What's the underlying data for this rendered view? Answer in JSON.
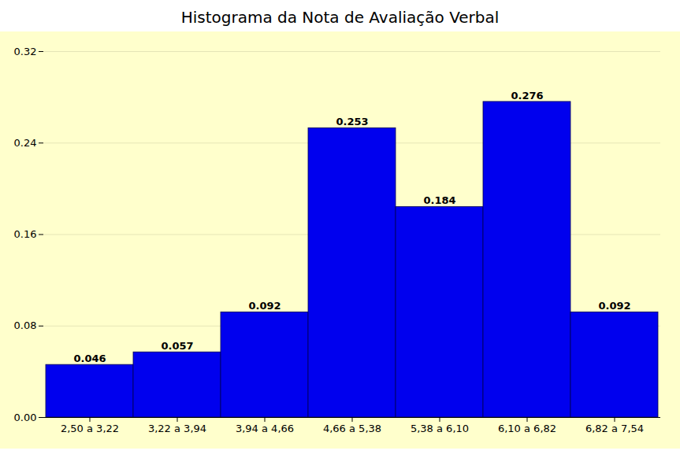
{
  "chart_data": {
    "type": "bar",
    "title": "Histograma da Nota de Avaliação Verbal",
    "categories": [
      "2,50 a 3,22",
      "3,22 a 3,94",
      "3,94 a 4,66",
      "4,66 a 5,38",
      "5,38 a 6,10",
      "6,10 a 6,82",
      "6,82 a 7,54"
    ],
    "values": [
      0.046,
      0.057,
      0.092,
      0.253,
      0.184,
      0.276,
      0.092
    ],
    "color": "#0000EE",
    "ylim": [
      0,
      0.32
    ],
    "yticks": [
      {
        "value": 0,
        "label": "0.00"
      },
      0.08,
      0.16,
      0.24,
      0.32
    ],
    "grid": true,
    "data_labels": true
  }
}
